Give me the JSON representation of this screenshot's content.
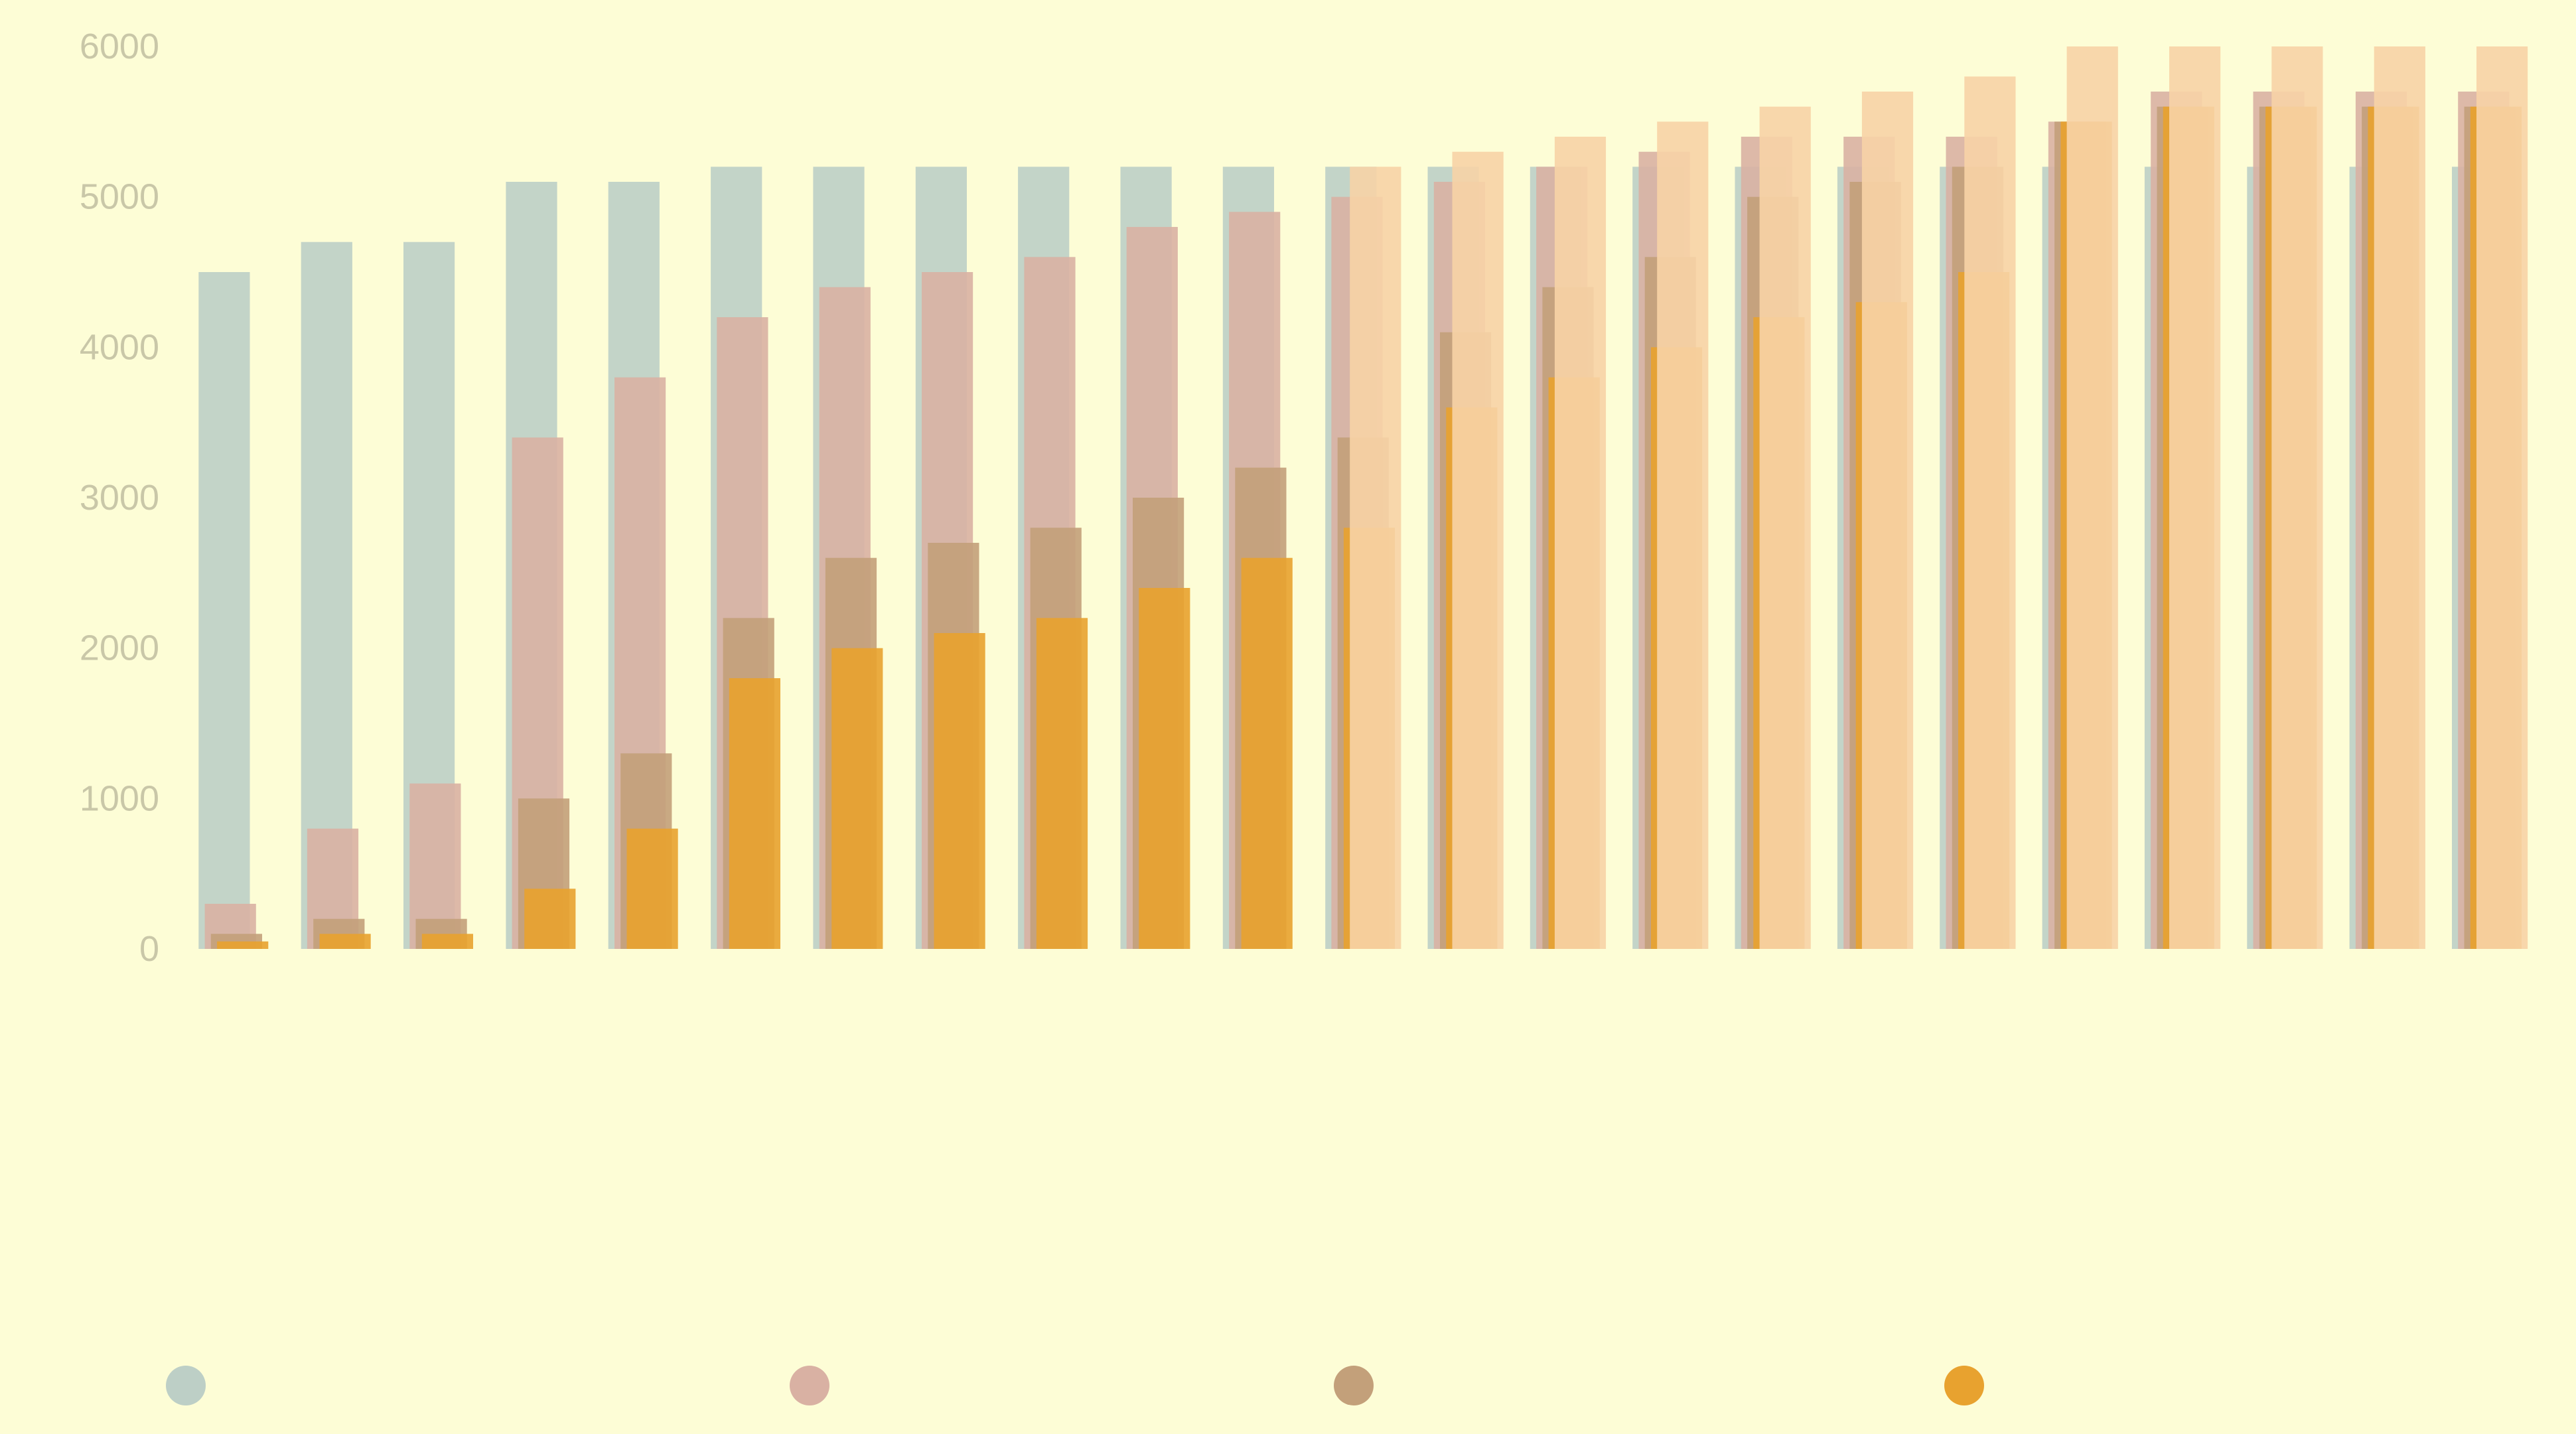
{
  "chart_data": {
    "type": "bar",
    "title": "",
    "xlabel": "",
    "ylabel": "",
    "ylim": [
      0,
      6000
    ],
    "yticks": [
      0,
      1000,
      2000,
      3000,
      4000,
      5000,
      6000
    ],
    "grid": false,
    "legend_position": "bottom",
    "categories": [
      "",
      "",
      "",
      "",
      "",
      "",
      "",
      "",
      "",
      "",
      "",
      "",
      "",
      "",
      "",
      "",
      "",
      "",
      "",
      "",
      "",
      "",
      ""
    ],
    "series": [
      {
        "name": "",
        "color": "#bdcfc6",
        "values": [
          4500,
          4700,
          4700,
          5100,
          5100,
          5200,
          5200,
          5200,
          5200,
          5200,
          5200,
          5200,
          5200,
          5200,
          5200,
          5200,
          5200,
          5200,
          5200,
          5200,
          5200,
          5200,
          5200
        ]
      },
      {
        "name": "",
        "color": "#d9b1a3",
        "values": [
          300,
          800,
          1100,
          3400,
          3800,
          4200,
          4400,
          4500,
          4600,
          4800,
          4900,
          5000,
          5100,
          5200,
          5300,
          5400,
          5400,
          5400,
          5500,
          5700,
          5700,
          5700,
          5700
        ]
      },
      {
        "name": "",
        "color": "#c3a07a",
        "values": [
          100,
          200,
          200,
          1000,
          1300,
          2200,
          2600,
          2700,
          2800,
          3000,
          3200,
          3400,
          4100,
          4400,
          4600,
          5000,
          5100,
          5200,
          5500,
          5600,
          5600,
          5600,
          5600
        ]
      },
      {
        "name": "",
        "color": "#e8a22f",
        "values": [
          50,
          100,
          100,
          400,
          800,
          1800,
          2000,
          2100,
          2200,
          2400,
          2600,
          2800,
          3600,
          3800,
          4000,
          4200,
          4300,
          4500,
          5500,
          5600,
          5600,
          5600,
          5600
        ]
      },
      {
        "name": "",
        "color": "#f7d3a6",
        "values": [
          0,
          0,
          0,
          0,
          0,
          0,
          0,
          0,
          0,
          0,
          0,
          5200,
          5300,
          5400,
          5500,
          5600,
          5700,
          5800,
          6000,
          6000,
          6000,
          6000,
          6000
        ]
      }
    ]
  }
}
